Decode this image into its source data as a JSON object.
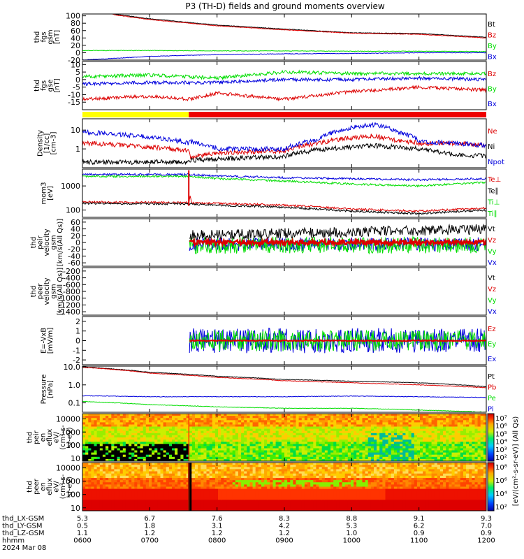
{
  "title": "P3 (TH-D) fields and ground moments overview",
  "x_ticks": [
    "0600",
    "0700",
    "0800",
    "0900",
    "1000",
    "1100",
    "1200"
  ],
  "footer": {
    "rows": [
      {
        "label": "thd_LX-GSM",
        "values": [
          "5.3",
          "6.7",
          "7.6",
          "8.3",
          "8.8",
          "9.1",
          "9.3"
        ]
      },
      {
        "label": "thd_LY-GSM",
        "values": [
          "0.5",
          "1.8",
          "3.1",
          "4.2",
          "5.3",
          "6.2",
          "7.0"
        ]
      },
      {
        "label": "thd_LZ-GSM",
        "values": [
          "1.1",
          "1.2",
          "1.2",
          "1.2",
          "1.0",
          "0.9",
          "0.9"
        ]
      },
      {
        "label": "hhmm",
        "values": [
          "0600",
          "0700",
          "0800",
          "0900",
          "1000",
          "1100",
          "1200"
        ]
      }
    ],
    "date": "2024 Mar 08"
  },
  "colors": {
    "black": "#000000",
    "red": "#dd0000",
    "green": "#00dd00",
    "blue": "#0000dd",
    "yellow": "#ffff00",
    "bar_red": "#ee0000"
  },
  "colorbar_ticks": [
    "10²",
    "10³",
    "10⁴",
    "10⁵",
    "10⁶",
    "10⁷"
  ],
  "colorbar_ticks_lower": [
    "10²",
    "10⁴",
    "10⁶",
    "10⁸"
  ],
  "colorbar_label": "[eV/(cm²-s-sr-eV)] (All Qs)",
  "chart_data": [
    {
      "type": "line",
      "name": "fgs_gsm",
      "ylabel": [
        "thd",
        "fgs",
        "gsm",
        "[nT]"
      ],
      "yticks": [
        "100",
        "80",
        "60",
        "40",
        "20",
        "0",
        "-20"
      ],
      "ylim": [
        -20,
        105
      ],
      "legend": [
        {
          "name": "Bt",
          "color": "#000000"
        },
        {
          "name": "Bz",
          "color": "#dd0000"
        },
        {
          "name": "By",
          "color": "#00dd00"
        },
        {
          "name": "Bx",
          "color": "#0000dd"
        }
      ],
      "series_keypoints": {
        "Bt": [
          [
            0,
            130
          ],
          [
            0.5,
            104
          ],
          [
            1,
            92
          ],
          [
            2,
            75
          ],
          [
            3,
            64
          ],
          [
            4,
            54
          ],
          [
            5,
            52
          ],
          [
            6,
            42
          ]
        ],
        "Bz": [
          [
            0,
            128
          ],
          [
            0.5,
            102
          ],
          [
            1,
            90
          ],
          [
            2,
            73
          ],
          [
            3,
            62
          ],
          [
            4,
            53
          ],
          [
            5,
            50
          ],
          [
            6,
            40
          ]
        ],
        "By": [
          [
            0,
            6
          ],
          [
            1,
            6
          ],
          [
            2,
            5
          ],
          [
            3,
            5
          ],
          [
            4,
            4
          ],
          [
            5,
            4
          ],
          [
            6,
            3
          ]
        ],
        "Bx": [
          [
            0,
            -20
          ],
          [
            1,
            -10
          ],
          [
            2,
            -5
          ],
          [
            3,
            -3
          ],
          [
            4,
            -2
          ],
          [
            5,
            0
          ],
          [
            6,
            0
          ]
        ]
      }
    },
    {
      "type": "line",
      "name": "fgs_gse",
      "ylabel": [
        "thd",
        "fgs",
        "gse",
        "[nT]"
      ],
      "yticks": [
        "10",
        "5",
        "0",
        "-5",
        "-10",
        "-15"
      ],
      "ylim": [
        -20,
        12
      ],
      "legend": [
        {
          "name": "Bz",
          "color": "#dd0000"
        },
        {
          "name": "By",
          "color": "#00dd00"
        },
        {
          "name": "Bx",
          "color": "#0000dd"
        }
      ],
      "series_keypoints": {
        "Bz": [
          [
            0,
            -13
          ],
          [
            1,
            -11
          ],
          [
            1.6,
            -13
          ],
          [
            2,
            -9
          ],
          [
            3,
            -13
          ],
          [
            4,
            -8
          ],
          [
            5,
            -5
          ],
          [
            6,
            -7
          ]
        ],
        "By": [
          [
            0,
            2
          ],
          [
            1,
            3
          ],
          [
            2,
            1
          ],
          [
            3,
            5
          ],
          [
            4,
            4
          ],
          [
            5,
            4
          ],
          [
            6,
            4
          ]
        ],
        "Bx": [
          [
            0,
            -3
          ],
          [
            1,
            -2
          ],
          [
            2,
            -2
          ],
          [
            3,
            0
          ],
          [
            4,
            0
          ],
          [
            5,
            1
          ],
          [
            6,
            0
          ]
        ]
      }
    },
    {
      "type": "bar",
      "name": "mode_bar",
      "segments": [
        {
          "start": 0,
          "end": 1.58,
          "color": "#ffff00"
        },
        {
          "start": 1.58,
          "end": 6,
          "color": "#ee0000"
        }
      ]
    },
    {
      "type": "line",
      "name": "density",
      "log": true,
      "ylabel": [
        "Density",
        "[1/cc]",
        "[cm-3]"
      ],
      "yticks": [
        "10",
        "1"
      ],
      "ytick_values": [
        10,
        1
      ],
      "ylim": [
        0.1,
        40
      ],
      "legend": [
        {
          "name": "Ne",
          "color": "#dd0000"
        },
        {
          "name": "Ni",
          "color": "#000000"
        },
        {
          "name": "Npot",
          "color": "#0000dd"
        }
      ],
      "series_keypoints": {
        "Ne": [
          [
            0,
            2
          ],
          [
            1.58,
            0.8
          ],
          [
            1.6,
            0.35
          ],
          [
            2,
            0.6
          ],
          [
            3,
            0.8
          ],
          [
            3.5,
            2
          ],
          [
            4.3,
            5
          ],
          [
            4.6,
            3
          ],
          [
            5,
            2
          ],
          [
            5.5,
            2
          ],
          [
            6,
            1.5
          ]
        ],
        "Ni": [
          [
            0,
            0.2
          ],
          [
            1.58,
            0.2
          ],
          [
            1.6,
            0.25
          ],
          [
            2,
            0.3
          ],
          [
            3,
            0.4
          ],
          [
            3.5,
            0.9
          ],
          [
            4.3,
            1.5
          ],
          [
            5,
            1
          ],
          [
            5.5,
            0.5
          ],
          [
            6,
            0.4
          ]
        ],
        "Npot": [
          [
            0,
            8
          ],
          [
            1,
            4
          ],
          [
            1.58,
            2
          ],
          [
            1.6,
            2.5
          ],
          [
            2,
            1
          ],
          [
            3,
            1
          ],
          [
            3.5,
            3
          ],
          [
            4.3,
            20
          ],
          [
            4.7,
            8
          ],
          [
            5,
            2.5
          ],
          [
            6,
            1.5
          ]
        ]
      }
    },
    {
      "type": "line",
      "name": "temperature",
      "log": true,
      "ylabel": [
        "mom3",
        "[eV]"
      ],
      "yticks": [
        "1000",
        "100"
      ],
      "ytick_values": [
        1000,
        100
      ],
      "ylim": [
        50,
        5000
      ],
      "legend": [
        {
          "name": "Te⊥",
          "color": "#dd0000"
        },
        {
          "name": "Te∥",
          "color": "#000000"
        },
        {
          "name": "Ti⊥",
          "color": "#00dd00"
        },
        {
          "name": "Ti∥",
          "color": "#00dd00"
        }
      ],
      "series_keypoints": {
        "Ti_blue": [
          [
            0,
            3000
          ],
          [
            1.58,
            3000
          ],
          [
            2,
            2600
          ],
          [
            3,
            2200
          ],
          [
            4,
            2000
          ],
          [
            5,
            1800
          ],
          [
            6,
            2000
          ]
        ],
        "Ti_green": [
          [
            0,
            2500
          ],
          [
            1.58,
            2500
          ],
          [
            2,
            2000
          ],
          [
            3,
            1600
          ],
          [
            4,
            1200
          ],
          [
            5,
            1000
          ],
          [
            6,
            1400
          ]
        ],
        "Te_red": [
          [
            0,
            220
          ],
          [
            1.58,
            200
          ],
          [
            1.6,
            400
          ],
          [
            1.62,
            200
          ],
          [
            2,
            190
          ],
          [
            3,
            160
          ],
          [
            4,
            110
          ],
          [
            5,
            90
          ],
          [
            6,
            120
          ]
        ],
        "Te_black": [
          [
            0,
            190
          ],
          [
            1.58,
            180
          ],
          [
            2,
            160
          ],
          [
            3,
            130
          ],
          [
            4,
            90
          ],
          [
            5,
            70
          ],
          [
            6,
            100
          ]
        ]
      }
    },
    {
      "type": "line",
      "name": "ion_velocity",
      "ylabel": [
        "thd",
        "peir",
        "velocity",
        "gsm",
        "[km/s(All Qs)]"
      ],
      "yticks": [
        "60",
        "40",
        "20",
        "0",
        "-20",
        "-40",
        "-60"
      ],
      "ylim": [
        -70,
        70
      ],
      "legend": [
        {
          "name": "Vt",
          "color": "#000000"
        },
        {
          "name": "Vz",
          "color": "#dd0000"
        },
        {
          "name": "Vy",
          "color": "#00dd00"
        },
        {
          "name": "Vx",
          "color": "#0000dd"
        }
      ],
      "data_start": 1.58
    },
    {
      "type": "line",
      "name": "electron_velocity",
      "ylabel": [
        "thd",
        "peer",
        "velocity",
        "gsm",
        "[km/s(All Qs)]"
      ],
      "yticks": [
        "-200",
        "-400",
        "-600",
        "-800",
        "-1000",
        "-1200",
        "-1400"
      ],
      "ylim": [
        -1500,
        -100
      ],
      "legend": [
        {
          "name": "Vt",
          "color": "#000000"
        },
        {
          "name": "Vz",
          "color": "#dd0000"
        },
        {
          "name": "Vy",
          "color": "#00dd00"
        },
        {
          "name": "Vx",
          "color": "#0000dd"
        }
      ]
    },
    {
      "type": "line",
      "name": "efield",
      "ylabel": [
        "E=-VxB",
        "[mV/m]"
      ],
      "yticks": [
        "2",
        "1",
        "0",
        "-1",
        "-2"
      ],
      "ylim": [
        -2.5,
        2.5
      ],
      "legend": [
        {
          "name": "Ez",
          "color": "#dd0000"
        },
        {
          "name": "Ey",
          "color": "#00dd00"
        },
        {
          "name": "Ex",
          "color": "#0000dd"
        }
      ],
      "data_start": 1.58
    },
    {
      "type": "line",
      "name": "pressure",
      "log": true,
      "ylabel": [
        "Pressure",
        "[nPa]"
      ],
      "yticks": [
        "10.0",
        "1.0",
        "0.1"
      ],
      "ytick_values": [
        10,
        1,
        0.1
      ],
      "ylim": [
        0.03,
        11
      ],
      "legend": [
        {
          "name": "Pt",
          "color": "#000000"
        },
        {
          "name": "Pb",
          "color": "#dd0000"
        },
        {
          "name": "Pe",
          "color": "#00dd00"
        },
        {
          "name": "Pi",
          "color": "#0000dd"
        }
      ],
      "series_keypoints": {
        "Pt": [
          [
            0,
            10
          ],
          [
            1,
            5
          ],
          [
            2,
            3
          ],
          [
            3,
            2
          ],
          [
            4,
            1.6
          ],
          [
            5,
            1.3
          ],
          [
            6,
            0.8
          ]
        ],
        "Pb": [
          [
            0,
            9.5
          ],
          [
            1,
            4.5
          ],
          [
            2,
            2.6
          ],
          [
            3,
            1.7
          ],
          [
            4,
            1.3
          ],
          [
            5,
            1.0
          ],
          [
            6,
            0.7
          ]
        ],
        "Pi": [
          [
            0,
            0.25
          ],
          [
            1,
            0.22
          ],
          [
            2,
            0.22
          ],
          [
            3,
            0.22
          ],
          [
            4,
            0.24
          ],
          [
            5,
            0.22
          ],
          [
            6,
            0.2
          ]
        ],
        "Pe": [
          [
            0,
            0.12
          ],
          [
            1,
            0.08
          ],
          [
            2,
            0.06
          ],
          [
            3,
            0.05
          ],
          [
            4,
            0.05
          ],
          [
            5,
            0.04
          ],
          [
            6,
            0.03
          ]
        ]
      }
    },
    {
      "type": "heatmap",
      "name": "ion_energy_flux",
      "ylabel": [
        "thd",
        "peir",
        "en",
        "eflux",
        "eV/",
        "(cm²-s-",
        "sr-eV)"
      ],
      "yticks": [
        "10000",
        "1000",
        "100",
        "10"
      ],
      "ytick_values": [
        10000,
        1000,
        100,
        10
      ],
      "ylim": [
        6,
        25000
      ]
    },
    {
      "type": "heatmap",
      "name": "electron_energy_flux",
      "ylabel": [
        "thd",
        "peer",
        "en",
        "eflux",
        "eV/",
        "(cm²-s-",
        "sr-eV)"
      ],
      "yticks": [
        "10000",
        "1000",
        "100",
        "10"
      ],
      "ytick_values": [
        10000,
        1000,
        100,
        10
      ],
      "ylim": [
        6,
        25000
      ]
    }
  ]
}
